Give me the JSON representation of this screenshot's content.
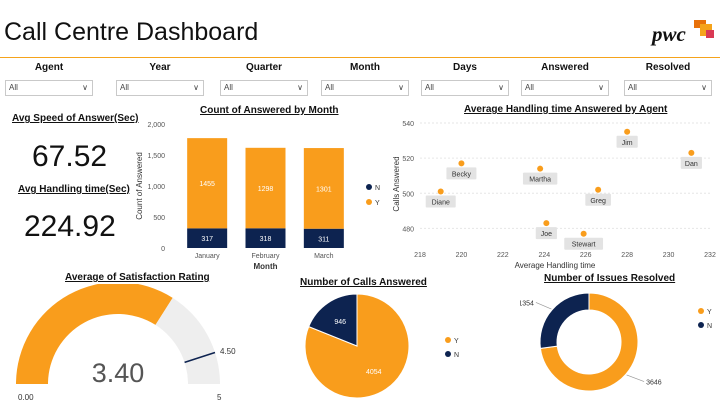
{
  "title": "Call Centre Dashboard",
  "logo": {
    "text": "pwc",
    "colors": [
      "#f5a31b",
      "#e8710a",
      "#d93954"
    ]
  },
  "filters": [
    {
      "label": "Agent",
      "value": "All"
    },
    {
      "label": "Year",
      "value": "All"
    },
    {
      "label": "Quarter",
      "value": "All"
    },
    {
      "label": "Month",
      "value": "All"
    },
    {
      "label": "Days",
      "value": "All"
    },
    {
      "label": "Answered",
      "value": "All"
    },
    {
      "label": "Resolved",
      "value": "All"
    }
  ],
  "kpis": {
    "speed_title": "Avg Speed of Answer(Sec)",
    "speed_value": "67.52",
    "handling_title": "Avg Handling time(Sec)",
    "handling_value": "224.92"
  },
  "colors": {
    "orange": "#f99d1c",
    "navy": "#0d2350",
    "grey": "#eeeeee"
  },
  "chart_data": [
    {
      "type": "bar",
      "title": "Count of Answered by Month",
      "xlabel": "Month",
      "ylabel": "Count of Answered",
      "categories": [
        "January",
        "February",
        "March"
      ],
      "series": [
        {
          "name": "N",
          "values": [
            317,
            318,
            311
          ]
        },
        {
          "name": "Y",
          "values": [
            1455,
            1298,
            1301
          ]
        }
      ],
      "ylim": [
        0,
        2000
      ],
      "yticks": [
        "0",
        "500",
        "1,000",
        "1,500",
        "2,000"
      ],
      "legend": "right"
    },
    {
      "type": "scatter",
      "title": "Average Handling time Answered by Agent",
      "xlabel": "Average Handling time",
      "ylabel": "Calls Answered",
      "xlim": [
        218,
        232
      ],
      "ylim": [
        470,
        540
      ],
      "xticks": [
        218,
        220,
        222,
        224,
        226,
        228,
        230,
        232
      ],
      "yticks": [
        480,
        500,
        520,
        540
      ],
      "points": [
        {
          "label": "Diane",
          "x": 219.0,
          "y": 501
        },
        {
          "label": "Becky",
          "x": 220.0,
          "y": 517
        },
        {
          "label": "Martha",
          "x": 223.8,
          "y": 514
        },
        {
          "label": "Joe",
          "x": 224.1,
          "y": 483
        },
        {
          "label": "Stewart",
          "x": 225.9,
          "y": 477
        },
        {
          "label": "Greg",
          "x": 226.6,
          "y": 502
        },
        {
          "label": "Jim",
          "x": 228.0,
          "y": 535
        },
        {
          "label": "Dan",
          "x": 231.1,
          "y": 523
        }
      ]
    },
    {
      "type": "gauge",
      "title": "Average of Satisfaction Rating",
      "value": 3.4,
      "value_label": "3.40",
      "min": 0,
      "max": 5,
      "min_label": "0.00",
      "max_label": "5",
      "target": 4.5,
      "target_label": "4.50"
    },
    {
      "type": "pie",
      "title": "Number of Calls Answered",
      "slices": [
        {
          "name": "Y",
          "value": 4054
        },
        {
          "name": "N",
          "value": 946
        }
      ],
      "legend": "right"
    },
    {
      "type": "donut",
      "title": "Number of Issues Resolved",
      "slices": [
        {
          "name": "Y",
          "value": 3646
        },
        {
          "name": "N",
          "value": 1354
        }
      ],
      "legend": "right"
    }
  ]
}
